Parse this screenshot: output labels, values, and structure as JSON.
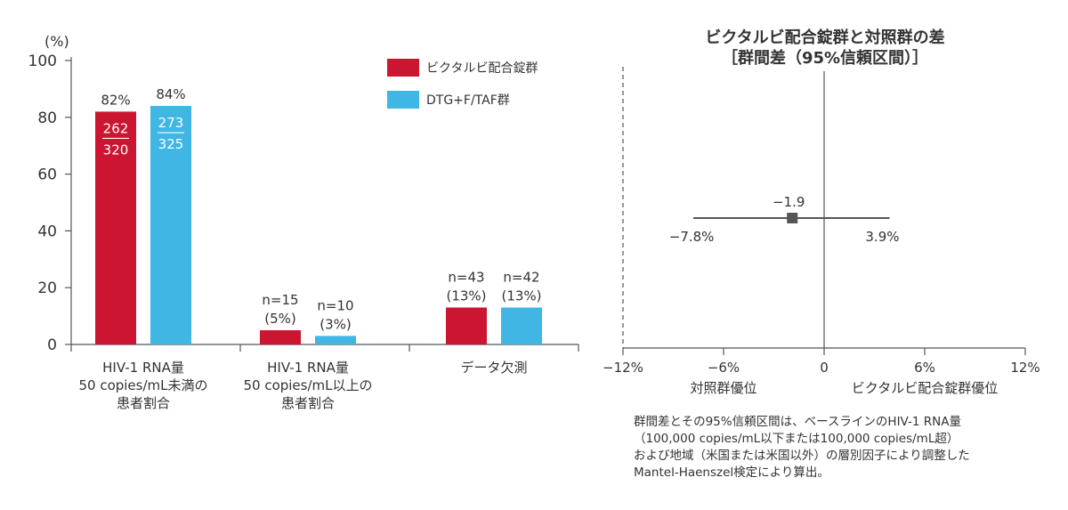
{
  "chart_data": [
    {
      "type": "bar",
      "ylabel": "(%)",
      "ylim": [
        0,
        100
      ],
      "yticks": [
        0,
        20,
        40,
        60,
        80,
        100
      ],
      "categories": [
        [
          "HIV-1 RNA量",
          "50 copies/mL未満の",
          "患者割合"
        ],
        [
          "HIV-1 RNA量",
          "50 copies/mL以上の",
          "患者割合"
        ],
        [
          "データ欠測"
        ]
      ],
      "series": [
        {
          "name": "ビクタルビ配合錠群",
          "color": "#cc1530",
          "values": [
            82,
            5,
            13
          ],
          "labels": [
            {
              "lines": [
                "82%"
              ],
              "inside": [
                "262",
                "320"
              ]
            },
            {
              "lines": [
                "n=15",
                "(5%)"
              ]
            },
            {
              "lines": [
                "n=43",
                "(13%)"
              ]
            }
          ]
        },
        {
          "name": "DTG+F/TAF群",
          "color": "#3fb6e4",
          "values": [
            84,
            3,
            13
          ],
          "labels": [
            {
              "lines": [
                "84%"
              ],
              "inside": [
                "273",
                "325"
              ]
            },
            {
              "lines": [
                "n=10",
                "(3%)"
              ]
            },
            {
              "lines": [
                "n=42",
                "(13%)"
              ]
            }
          ]
        }
      ]
    },
    {
      "type": "forest",
      "title": [
        "ビクタルビ配合錠群と対照群の差",
        "［群間差（95%信頼区間）］"
      ],
      "xlim": [
        -12,
        12
      ],
      "xticks": [
        -12,
        -6,
        0,
        6,
        12
      ],
      "xtick_labels": [
        "−12%",
        "−6%",
        "0",
        "6%",
        "12%"
      ],
      "point": -1.9,
      "ci": [
        -7.8,
        3.9
      ],
      "point_label": "−1.9",
      "ci_labels": [
        "−7.8%",
        "3.9%"
      ],
      "left_favors": "対照群優位",
      "right_favors": "ビクタルビ配合錠群優位",
      "marker_color": "#555555"
    }
  ],
  "footnote": [
    "群間差とその95%信頼区間は、ベースラインのHIV-1 RNA量",
    "（100,000 copies/mL以下または100,000 copies/mL超）",
    "および地域（米国または米国以外）の層別因子により調整した",
    "Mantel-Haenszel検定により算出。"
  ]
}
